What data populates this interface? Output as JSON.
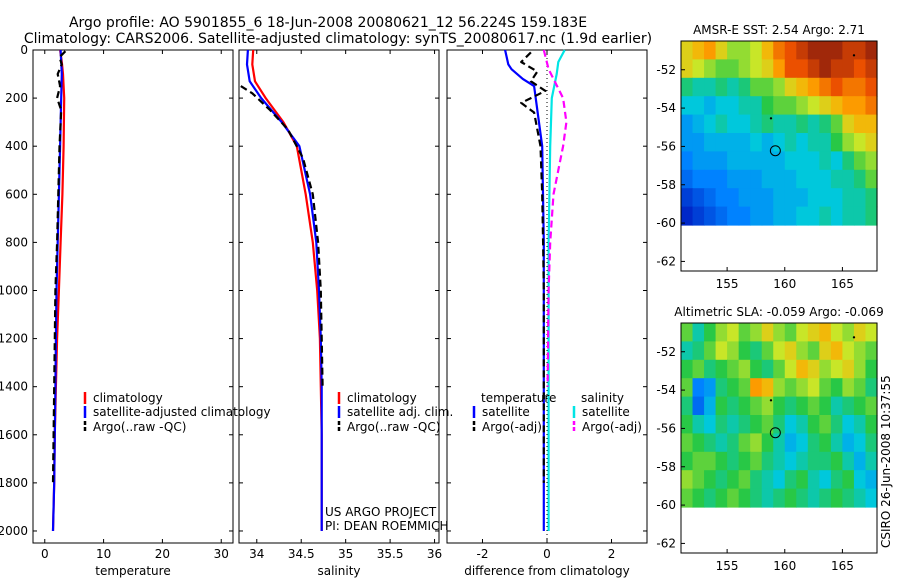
{
  "header": {
    "line1": "Argo profile: AO 5901855_6 18-Jun-2008 20080621_12 56.224S 159.183E",
    "line2": "Climatology: CARS2006. Satellite-adjusted climatology: synTS_20080617.nc (1.9d earlier)"
  },
  "credit": {
    "side_stamp": "CSIRO 26-Jun-2008 10:37:55",
    "project_line1": "US ARGO PROJECT",
    "project_line2": "PI: DEAN ROEMMICH"
  },
  "colors": {
    "climatology": "#ff0000",
    "satellite": "#0000ff",
    "argo": "#000000",
    "salinity_satellite": "#00e5e5",
    "salinity_argo": "#ff00ff"
  },
  "chart_data": [
    {
      "type": "line",
      "id": "temperature",
      "xlabel": "temperature",
      "ylabel": "",
      "xlim": [
        -2,
        32
      ],
      "ylim": [
        0,
        2050
      ],
      "xticks": [
        0,
        10,
        20,
        30
      ],
      "yticks": [
        0,
        200,
        400,
        600,
        800,
        1000,
        1200,
        1400,
        1600,
        1800,
        2000
      ],
      "legend": [
        "climatology",
        "satellite-adjusted climatology",
        "Argo(..raw -QC)"
      ],
      "series": [
        {
          "name": "climatology",
          "role": "climatology",
          "x": [
            2.6,
            2.9,
            3.1,
            3.3,
            3.2,
            3.0,
            2.7,
            2.4,
            2.1,
            1.9,
            1.7,
            1.6,
            1.5,
            1.4
          ],
          "y": [
            0,
            50,
            100,
            200,
            400,
            600,
            800,
            1000,
            1200,
            1400,
            1600,
            1800,
            1900,
            2000
          ]
        },
        {
          "name": "satellite-adjusted climatology",
          "role": "satellite",
          "x": [
            2.7,
            2.8,
            2.9,
            2.8,
            2.6,
            2.4,
            2.2,
            2.0,
            1.9,
            1.8,
            1.7,
            1.6,
            1.5,
            1.4
          ],
          "y": [
            0,
            50,
            100,
            200,
            400,
            600,
            800,
            1000,
            1200,
            1400,
            1600,
            1800,
            1900,
            2000
          ]
        },
        {
          "name": "Argo(..raw -QC)",
          "role": "argo",
          "x": [
            3.5,
            2.5,
            2.9,
            2.2,
            2.6,
            2.1,
            2.8,
            2.5,
            2.3,
            2.1,
            1.8,
            1.7,
            1.6,
            1.5,
            1.4
          ],
          "y": [
            5,
            30,
            60,
            100,
            150,
            200,
            250,
            400,
            600,
            800,
            1000,
            1200,
            1400,
            1600,
            1800
          ]
        }
      ]
    },
    {
      "type": "line",
      "id": "salinity",
      "xlabel": "salinity",
      "xlim": [
        33.8,
        36.05
      ],
      "ylim": [
        0,
        2050
      ],
      "xticks": [
        34,
        34.5,
        35,
        35.5,
        36
      ],
      "yticks": [
        0,
        200,
        400,
        600,
        800,
        1000,
        1200,
        1400,
        1600,
        1800,
        2000
      ],
      "legend": [
        "climatology",
        "satellite adj. clim.",
        "Argo(..raw -QC)"
      ],
      "series": [
        {
          "name": "climatology",
          "role": "climatology",
          "x": [
            33.96,
            33.95,
            33.98,
            34.1,
            34.3,
            34.45,
            34.55,
            34.63,
            34.68,
            34.71,
            34.72,
            34.73,
            34.73,
            34.73
          ],
          "y": [
            0,
            60,
            130,
            200,
            300,
            400,
            600,
            800,
            1000,
            1200,
            1400,
            1600,
            1800,
            2000
          ]
        },
        {
          "name": "satellite adj. clim.",
          "role": "satellite",
          "x": [
            33.9,
            33.89,
            33.92,
            34.05,
            34.28,
            34.48,
            34.6,
            34.67,
            34.7,
            34.72,
            34.73,
            34.73,
            34.73,
            34.73
          ],
          "y": [
            0,
            60,
            130,
            200,
            300,
            400,
            600,
            800,
            1000,
            1200,
            1400,
            1600,
            1800,
            2000
          ]
        },
        {
          "name": "Argo(..raw -QC)",
          "role": "argo",
          "x": [
            33.82,
            33.95,
            34.15,
            34.35,
            34.52,
            34.63,
            34.69,
            34.72,
            34.73,
            34.74
          ],
          "y": [
            150,
            180,
            250,
            330,
            450,
            600,
            800,
            1000,
            1200,
            1400
          ]
        }
      ]
    },
    {
      "type": "line",
      "id": "difference",
      "xlabel": "difference from climatology",
      "xlim": [
        -3.1,
        3.1
      ],
      "ylim": [
        0,
        2050
      ],
      "xticks": [
        -2,
        0,
        2
      ],
      "yticks": [
        0,
        200,
        400,
        600,
        800,
        1000,
        1200,
        1400,
        1600,
        1800,
        2000
      ],
      "legend_groups": [
        {
          "title": "temperature",
          "entries": [
            "satellite",
            "Argo(-adj)"
          ]
        },
        {
          "title": "salinity",
          "entries": [
            "satellite",
            "Argo(-adj)"
          ]
        }
      ],
      "series": [
        {
          "name": "temperature satellite",
          "role": "satellite",
          "x": [
            -1.3,
            -1.2,
            -1.1,
            -0.75,
            -0.4,
            -0.15,
            -0.1,
            -0.1,
            -0.1,
            -0.1,
            -0.1,
            -0.1
          ],
          "y": [
            0,
            60,
            80,
            120,
            150,
            400,
            800,
            1200,
            1400,
            1600,
            1800,
            2000
          ]
        },
        {
          "name": "temperature Argo(-adj)",
          "role": "argo",
          "x": [
            -0.5,
            -0.8,
            -0.3,
            -0.5,
            -0.05,
            -0.8,
            -0.4,
            -0.2,
            -0.15,
            -0.12,
            -0.1,
            -0.1,
            -0.1
          ],
          "y": [
            10,
            50,
            90,
            130,
            170,
            220,
            260,
            400,
            600,
            800,
            1000,
            1600,
            1800
          ]
        },
        {
          "name": "salinity satellite",
          "role": "salinity_satellite",
          "x": [
            0.55,
            0.35,
            0.3,
            0.15,
            0.1,
            0.05,
            0.05,
            0.05,
            0.05,
            0.05
          ],
          "y": [
            0,
            50,
            100,
            200,
            400,
            800,
            1200,
            1600,
            1800,
            2000
          ]
        },
        {
          "name": "salinity Argo(-adj)",
          "role": "salinity_argo",
          "x": [
            -0.1,
            0.05,
            0.5,
            0.6,
            0.5,
            0.35,
            0.2,
            0.1,
            0.05,
            0.02
          ],
          "y": [
            0,
            80,
            200,
            300,
            400,
            500,
            600,
            800,
            1000,
            1400
          ]
        }
      ]
    },
    {
      "type": "heatmap",
      "id": "sst_map",
      "title": "AMSR-E SST: 2.54 Argo: 2.71",
      "xlim": [
        151,
        168
      ],
      "ylim": [
        -62.5,
        -50.5
      ],
      "data_ylim": [
        -60.1,
        -50.5
      ],
      "xticks": [
        155,
        160,
        165
      ],
      "yticks": [
        -52,
        -54,
        -56,
        -58,
        -60,
        -62
      ],
      "profile_position": [
        159.183,
        -56.224
      ],
      "grid_values": [
        [
          0.7,
          0.75,
          0.8,
          0.7,
          0.6,
          0.6,
          0.65,
          0.75,
          0.85,
          0.9,
          0.95,
          1.0,
          1.0,
          1.0,
          0.95,
          0.95,
          1.0
        ],
        [
          0.7,
          0.65,
          0.6,
          0.55,
          0.55,
          0.6,
          0.65,
          0.7,
          0.8,
          0.9,
          0.9,
          0.95,
          1.0,
          0.95,
          0.95,
          0.9,
          0.95
        ],
        [
          0.45,
          0.4,
          0.4,
          0.45,
          0.4,
          0.45,
          0.55,
          0.55,
          0.6,
          0.7,
          0.75,
          0.8,
          0.85,
          0.9,
          0.85,
          0.85,
          0.9
        ],
        [
          0.35,
          0.35,
          0.3,
          0.35,
          0.35,
          0.4,
          0.4,
          0.5,
          0.55,
          0.55,
          0.6,
          0.65,
          0.7,
          0.75,
          0.8,
          0.8,
          0.85
        ],
        [
          0.25,
          0.3,
          0.35,
          0.4,
          0.35,
          0.35,
          0.4,
          0.45,
          0.4,
          0.4,
          0.45,
          0.4,
          0.45,
          0.55,
          0.7,
          0.75,
          0.75
        ],
        [
          0.25,
          0.25,
          0.3,
          0.3,
          0.3,
          0.3,
          0.35,
          0.3,
          0.35,
          0.4,
          0.35,
          0.4,
          0.4,
          0.5,
          0.6,
          0.65,
          0.7
        ],
        [
          0.2,
          0.25,
          0.25,
          0.25,
          0.3,
          0.3,
          0.3,
          0.3,
          0.3,
          0.35,
          0.35,
          0.35,
          0.4,
          0.35,
          0.45,
          0.55,
          0.6
        ],
        [
          0.15,
          0.2,
          0.2,
          0.2,
          0.25,
          0.25,
          0.25,
          0.3,
          0.3,
          0.3,
          0.35,
          0.35,
          0.35,
          0.4,
          0.4,
          0.45,
          0.55
        ],
        [
          0.05,
          0.1,
          0.15,
          0.2,
          0.2,
          0.25,
          0.25,
          0.25,
          0.3,
          0.3,
          0.3,
          0.35,
          0.35,
          0.35,
          0.4,
          0.4,
          0.45
        ],
        [
          0.0,
          0.05,
          0.1,
          0.15,
          0.2,
          0.2,
          0.25,
          0.25,
          0.3,
          0.3,
          0.35,
          0.35,
          0.4,
          0.35,
          0.4,
          0.4,
          0.45
        ]
      ]
    },
    {
      "type": "heatmap",
      "id": "sla_map",
      "title": "Altimetric SLA: -0.059 Argo: -0.069",
      "xlim": [
        151,
        168
      ],
      "ylim": [
        -62.5,
        -50.5
      ],
      "data_ylim": [
        -60.1,
        -50.5
      ],
      "xticks": [
        155,
        160,
        165
      ],
      "yticks": [
        -52,
        -54,
        -56,
        -58,
        -60,
        -62
      ],
      "profile_position": [
        159.183,
        -56.224
      ],
      "grid_values": [
        [
          0.55,
          0.4,
          0.5,
          0.6,
          0.65,
          0.55,
          0.6,
          0.7,
          0.6,
          0.55,
          0.65,
          0.7,
          0.75,
          0.65,
          0.6,
          0.7,
          0.65
        ],
        [
          0.4,
          0.45,
          0.55,
          0.65,
          0.6,
          0.5,
          0.45,
          0.55,
          0.65,
          0.7,
          0.6,
          0.55,
          0.7,
          0.75,
          0.65,
          0.6,
          0.55
        ],
        [
          0.5,
          0.55,
          0.45,
          0.5,
          0.55,
          0.6,
          0.5,
          0.45,
          0.55,
          0.65,
          0.75,
          0.7,
          0.6,
          0.65,
          0.7,
          0.6,
          0.5
        ],
        [
          0.55,
          0.2,
          0.25,
          0.45,
          0.5,
          0.55,
          0.8,
          0.75,
          0.6,
          0.55,
          0.6,
          0.65,
          0.55,
          0.5,
          0.6,
          0.55,
          0.45
        ],
        [
          0.45,
          0.15,
          0.3,
          0.5,
          0.45,
          0.5,
          0.55,
          0.6,
          0.5,
          0.45,
          0.5,
          0.55,
          0.5,
          0.4,
          0.45,
          0.5,
          0.55
        ],
        [
          0.5,
          0.4,
          0.35,
          0.45,
          0.4,
          0.45,
          0.5,
          0.55,
          0.45,
          0.35,
          0.4,
          0.5,
          0.55,
          0.45,
          0.35,
          0.4,
          0.5
        ],
        [
          0.55,
          0.5,
          0.45,
          0.4,
          0.45,
          0.55,
          0.6,
          0.5,
          0.4,
          0.3,
          0.35,
          0.45,
          0.5,
          0.4,
          0.3,
          0.35,
          0.45
        ],
        [
          0.5,
          0.55,
          0.55,
          0.5,
          0.45,
          0.5,
          0.55,
          0.45,
          0.4,
          0.35,
          0.4,
          0.45,
          0.45,
          0.5,
          0.4,
          0.3,
          0.4
        ],
        [
          0.6,
          0.55,
          0.5,
          0.45,
          0.5,
          0.55,
          0.45,
          0.4,
          0.35,
          0.45,
          0.5,
          0.4,
          0.35,
          0.45,
          0.5,
          0.35,
          0.3
        ],
        [
          0.55,
          0.5,
          0.45,
          0.5,
          0.55,
          0.5,
          0.45,
          0.4,
          0.45,
          0.5,
          0.45,
          0.4,
          0.45,
          0.5,
          0.45,
          0.4,
          0.35
        ]
      ]
    }
  ]
}
